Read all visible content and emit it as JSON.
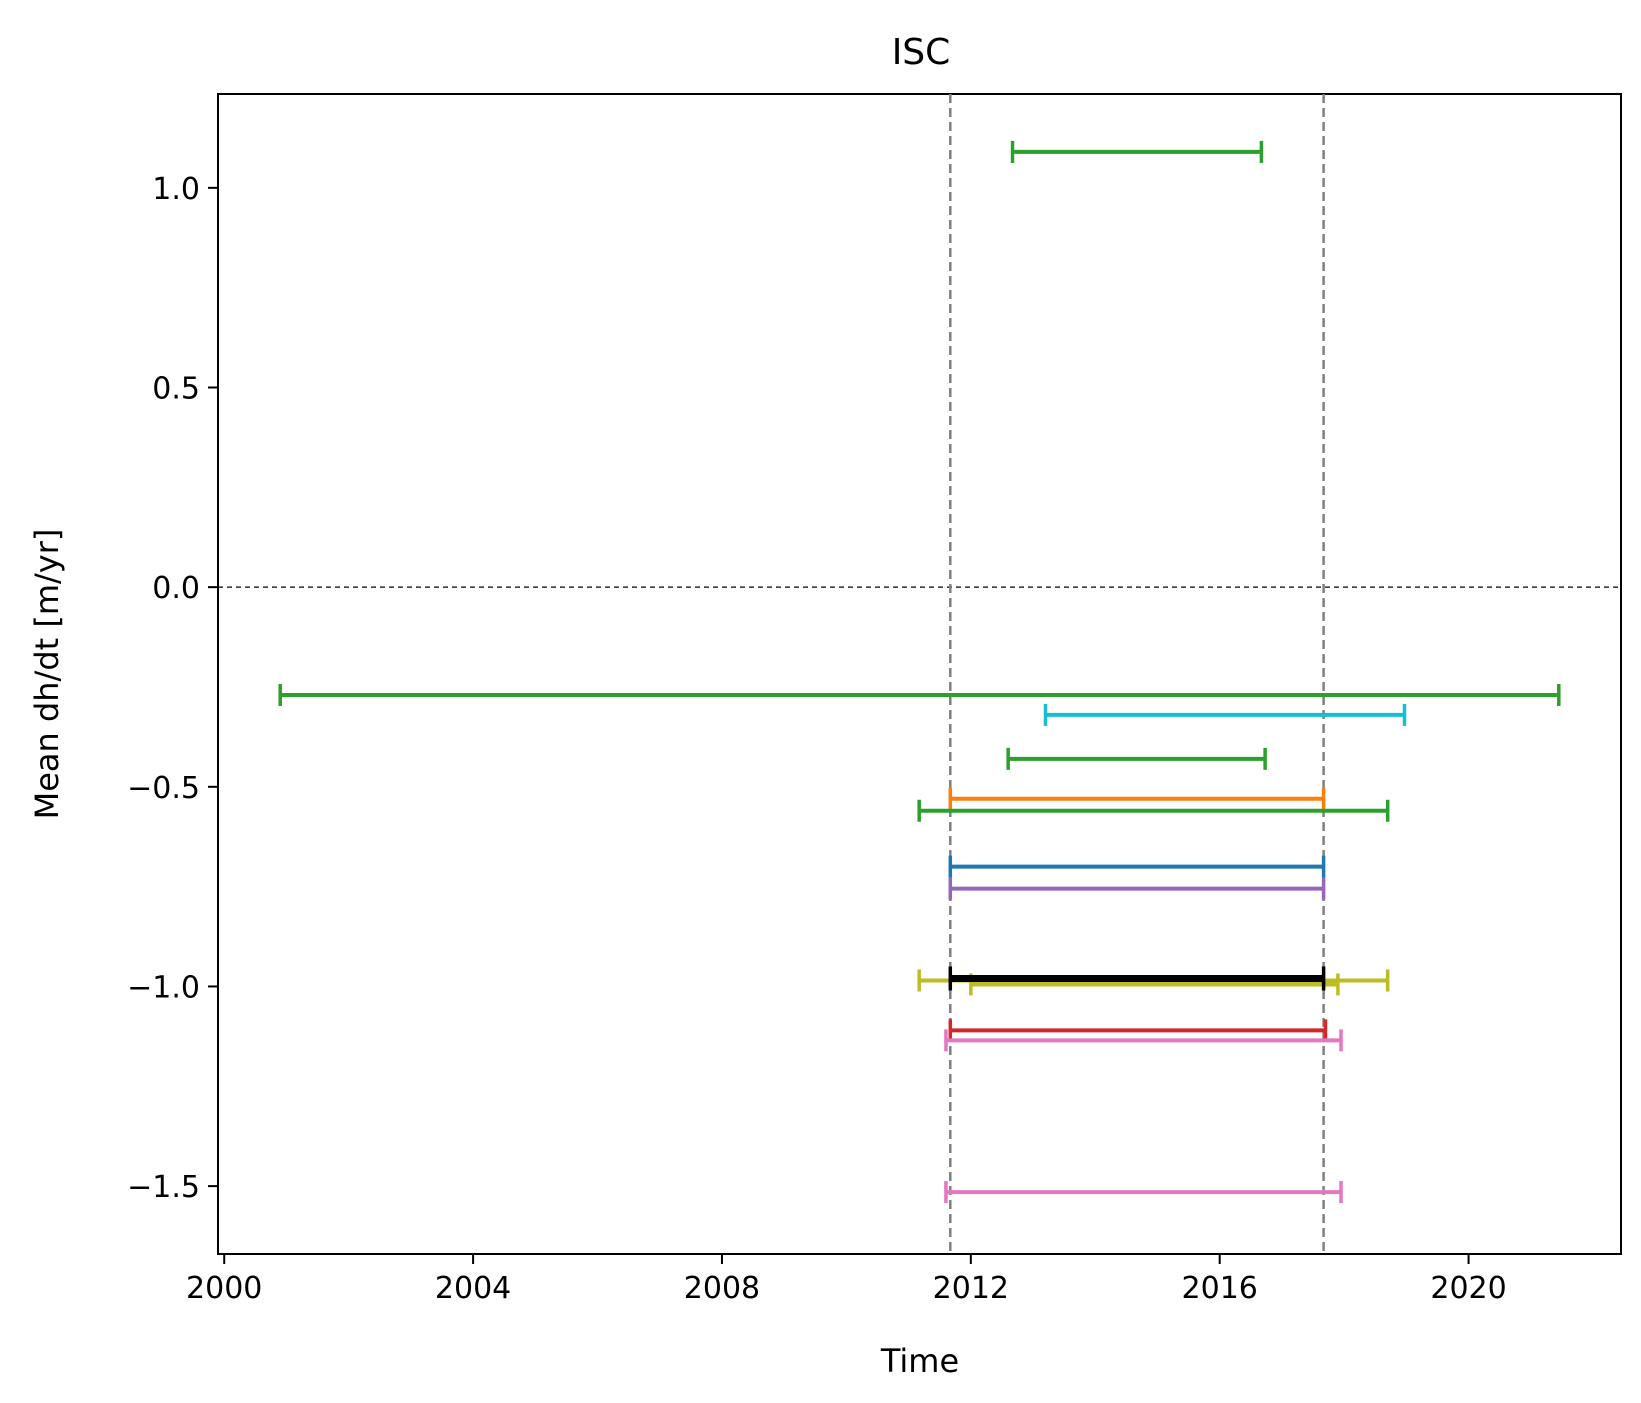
{
  "chart_data": {
    "type": "errorbar",
    "title": "ISC",
    "xlabel": "Time",
    "ylabel": "Mean dh/dt [m/yr]",
    "xlim": [
      1999.9,
      2022.45
    ],
    "ylim": [
      -1.67,
      1.235
    ],
    "xticks": [
      2000,
      2004,
      2008,
      2012,
      2016,
      2020
    ],
    "yticks": [
      1.0,
      0.5,
      0.0,
      -0.5,
      -1.0,
      -1.5
    ],
    "ytick_labels": [
      "1.0",
      "0.5",
      "0.0",
      "−0.5",
      "−1.0",
      "−1.5"
    ],
    "reference_lines": {
      "horizontal": [
        {
          "y": 0.0,
          "style": "dashed",
          "color": "#000000"
        }
      ],
      "vertical": [
        {
          "x": 2011.67,
          "style": "dashed",
          "color": "#808080"
        },
        {
          "x": 2017.67,
          "style": "dashed",
          "color": "#808080"
        }
      ]
    },
    "series": [
      {
        "color": "#2ca02c",
        "x_start": 2012.67,
        "x_end": 2016.67,
        "y": 1.09
      },
      {
        "color": "#2ca02c",
        "x_start": 2000.9,
        "x_end": 2021.45,
        "y": -0.27
      },
      {
        "color": "#17becf",
        "x_start": 2013.2,
        "x_end": 2018.97,
        "y": -0.32
      },
      {
        "color": "#2ca02c",
        "x_start": 2012.6,
        "x_end": 2016.73,
        "y": -0.43
      },
      {
        "color": "#ff7f0e",
        "x_start": 2011.67,
        "x_end": 2017.67,
        "y": -0.53
      },
      {
        "color": "#2ca02c",
        "x_start": 2011.17,
        "x_end": 2018.7,
        "y": -0.56
      },
      {
        "color": "#1f77b4",
        "x_start": 2011.67,
        "x_end": 2017.67,
        "y": -0.7
      },
      {
        "color": "#9467bd",
        "x_start": 2011.67,
        "x_end": 2017.67,
        "y": -0.755
      },
      {
        "color": "#bcbd22",
        "x_start": 2011.17,
        "x_end": 2018.7,
        "y": -0.985
      },
      {
        "color": "#bcbd22",
        "x_start": 2012.0,
        "x_end": 2017.9,
        "y": -0.995
      },
      {
        "color": "#000000",
        "x_start": 2011.67,
        "x_end": 2017.67,
        "y": -0.98,
        "bold": true
      },
      {
        "color": "#d62728",
        "x_start": 2011.67,
        "x_end": 2017.7,
        "y": -1.11
      },
      {
        "color": "#e377c2",
        "x_start": 2011.6,
        "x_end": 2017.95,
        "y": -1.135
      },
      {
        "color": "#e377c2",
        "x_start": 2011.6,
        "x_end": 2017.95,
        "y": -1.515
      }
    ]
  }
}
